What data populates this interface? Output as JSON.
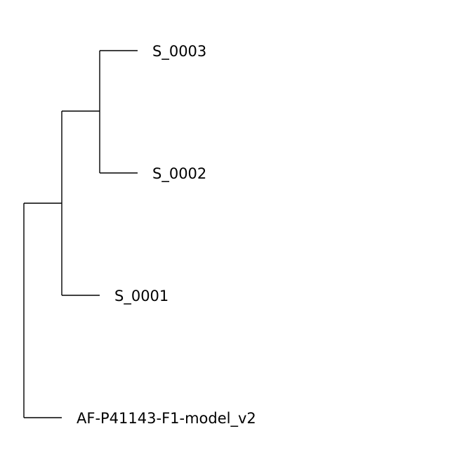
{
  "tree": {
    "leaves": [
      {
        "id": "s3",
        "label": "S_0003"
      },
      {
        "id": "s2",
        "label": "S_0002"
      },
      {
        "id": "s1",
        "label": "S_0001"
      },
      {
        "id": "af",
        "label": "AF-P41143-F1-model_v2"
      }
    ]
  }
}
